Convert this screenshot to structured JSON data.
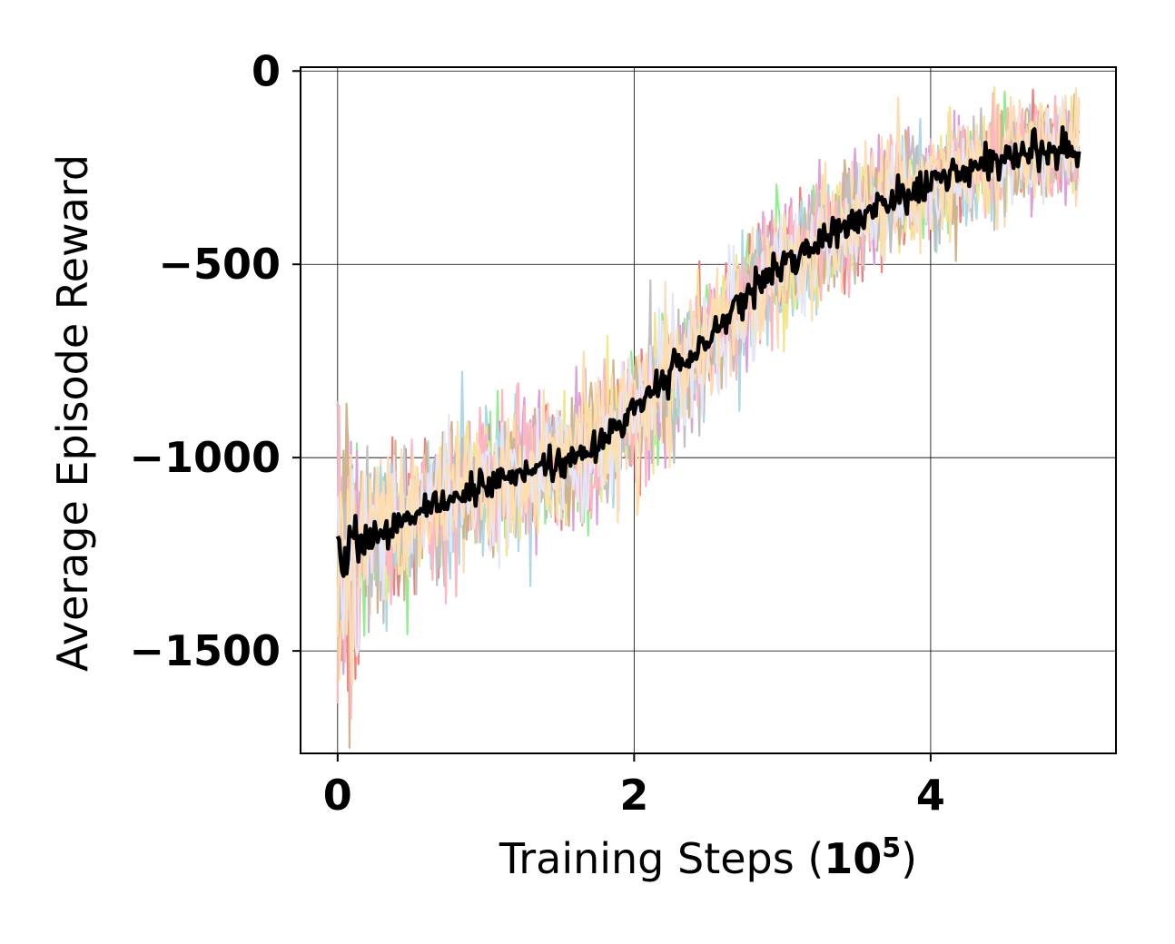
{
  "chart_data": {
    "type": "line",
    "title": "",
    "xlabel_prefix": "Training Steps (",
    "xlabel_power": "10",
    "xlabel_exponent": "5",
    "xlabel_suffix": ")",
    "ylabel": "Average Episode Reward",
    "xlim": [
      -0.25,
      5.25
    ],
    "ylim": [
      -1765,
      10
    ],
    "xticks": [
      0,
      2,
      4
    ],
    "xtick_labels": [
      "0",
      "2",
      "4"
    ],
    "yticks": [
      0,
      -500,
      -1000,
      -1500
    ],
    "ytick_labels": [
      "0",
      "−500",
      "−1000",
      "−1500"
    ],
    "grid": true,
    "legend": "none",
    "x_range": [
      0,
      5
    ],
    "samples_per_run": 500,
    "mean_curve": {
      "x": [
        0,
        0.25,
        0.5,
        0.75,
        1.0,
        1.25,
        1.5,
        1.75,
        2.0,
        2.25,
        2.5,
        2.75,
        3.0,
        3.25,
        3.5,
        3.75,
        4.0,
        4.25,
        4.5,
        4.75,
        5.0
      ],
      "y": [
        -1250,
        -1200,
        -1150,
        -1105,
        -1070,
        -1045,
        -1015,
        -975,
        -870,
        -780,
        -700,
        -590,
        -500,
        -445,
        -390,
        -330,
        -290,
        -260,
        -220,
        -205,
        -195
      ]
    },
    "mean_color": "#000000",
    "run_colors": [
      "#90ee90",
      "#f08080",
      "#dda0dd",
      "#ffdab9",
      "#add8e6",
      "#f0e68c",
      "#d2b48c",
      "#c0c0c0",
      "#ffb6c1",
      "#e6e6fa",
      "#ffdead"
    ],
    "run_noise": 95
  }
}
